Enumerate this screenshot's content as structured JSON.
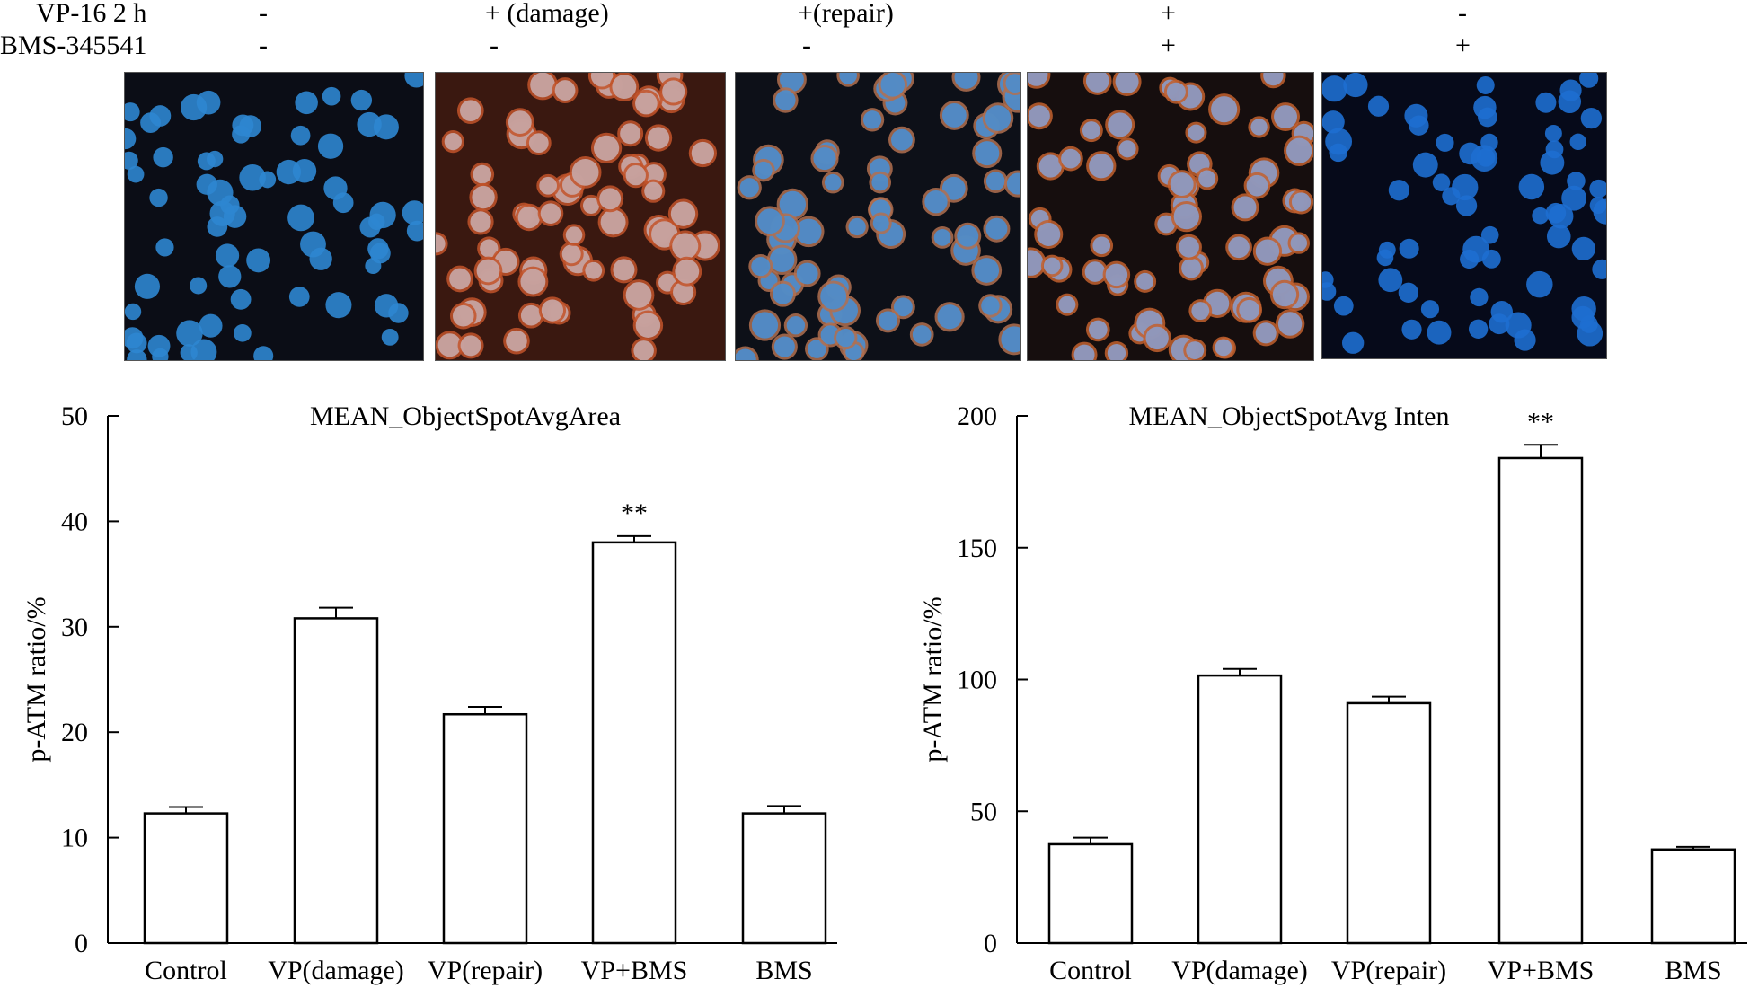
{
  "treatments": {
    "rows": [
      {
        "label": "VP-16 2 h",
        "values": [
          "-",
          "+ (damage)",
          "+(repair)",
          "+",
          "-"
        ]
      },
      {
        "label": "BMS-345541",
        "values": [
          "-",
          "-",
          "-",
          "+",
          "+"
        ]
      }
    ]
  },
  "micrographs": [
    {
      "name": "micrograph-control",
      "bg": "#0b0d16",
      "cell": "#2e86d0",
      "stain": "none"
    },
    {
      "name": "micrograph-vp-damage",
      "bg": "#3a1810",
      "cell": "#c8a8a8",
      "stain": "#c2542a"
    },
    {
      "name": "micrograph-vp-repair",
      "bg": "#0d1018",
      "cell": "#4a8ed0",
      "stain": "#b27050"
    },
    {
      "name": "micrograph-vp-bms",
      "bg": "#160e0e",
      "cell": "#8c9cc8",
      "stain": "#c2602e"
    },
    {
      "name": "micrograph-bms",
      "bg": "#060a1a",
      "cell": "#1e6ed0",
      "stain": "none"
    }
  ],
  "chart_data": [
    {
      "type": "bar",
      "title": "MEAN_ObjectSpotAvgArea",
      "ylabel": "p-ATM ratio/%",
      "xlabel": "",
      "categories": [
        "Control",
        "VP(damage)",
        "VP(repair)",
        "VP+BMS",
        "BMS"
      ],
      "values": [
        12.3,
        30.8,
        21.7,
        38.0,
        12.3
      ],
      "errors": [
        0.6,
        1.0,
        0.7,
        0.6,
        0.7
      ],
      "annotations": [
        "",
        "",
        "",
        "**",
        ""
      ],
      "ylim": [
        0,
        50
      ],
      "yticks": [
        0,
        10,
        20,
        30,
        40,
        50
      ],
      "grid": false
    },
    {
      "type": "bar",
      "title": "MEAN_ObjectSpotAvg Inten",
      "ylabel": "p-ATM ratio/%",
      "xlabel": "",
      "categories": [
        "Control",
        "VP(damage)",
        "VP(repair)",
        "VP+BMS",
        "BMS"
      ],
      "values": [
        37.5,
        101.5,
        91.0,
        184.0,
        35.5
      ],
      "errors": [
        2.5,
        2.5,
        2.5,
        5.0,
        1.0
      ],
      "annotations": [
        "",
        "",
        "",
        "**",
        ""
      ],
      "ylim": [
        0,
        200
      ],
      "yticks": [
        0,
        50,
        100,
        150,
        200
      ],
      "grid": false
    }
  ]
}
